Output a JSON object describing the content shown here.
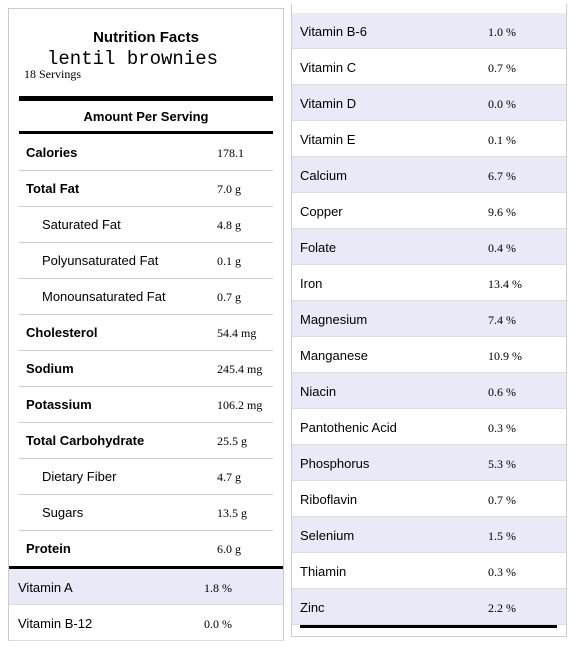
{
  "header": {
    "title": "Nutrition Facts",
    "recipe": "lentil brownies",
    "servings": "18 Servings",
    "amount_per_serving": "Amount Per Serving"
  },
  "nutrients": [
    {
      "name": "Calories",
      "value": "178.1",
      "sub": false
    },
    {
      "name": "Total Fat",
      "value": "7.0 g",
      "sub": false
    },
    {
      "name": "Saturated Fat",
      "value": "4.8 g",
      "sub": true
    },
    {
      "name": "Polyunsaturated Fat",
      "value": "0.1 g",
      "sub": true
    },
    {
      "name": "Monounsaturated Fat",
      "value": "0.7 g",
      "sub": true
    },
    {
      "name": "Cholesterol",
      "value": "54.4 mg",
      "sub": false
    },
    {
      "name": "Sodium",
      "value": "245.4 mg",
      "sub": false
    },
    {
      "name": "Potassium",
      "value": "106.2 mg",
      "sub": false
    },
    {
      "name": "Total Carbohydrate",
      "value": "25.5 g",
      "sub": false
    },
    {
      "name": "Dietary Fiber",
      "value": "4.7 g",
      "sub": true
    },
    {
      "name": "Sugars",
      "value": "13.5 g",
      "sub": true
    },
    {
      "name": "Protein",
      "value": "6.0 g",
      "sub": false
    }
  ],
  "vitamins_left": [
    {
      "name": "Vitamin A",
      "value": "1.8 %"
    },
    {
      "name": "Vitamin B-12",
      "value": "0.0 %"
    }
  ],
  "vitamins_right": [
    {
      "name": "Vitamin B-6",
      "value": "1.0 %"
    },
    {
      "name": "Vitamin C",
      "value": "0.7 %"
    },
    {
      "name": "Vitamin D",
      "value": "0.0 %"
    },
    {
      "name": "Vitamin E",
      "value": "0.1 %"
    },
    {
      "name": "Calcium",
      "value": "6.7 %"
    },
    {
      "name": "Copper",
      "value": "9.6 %"
    },
    {
      "name": "Folate",
      "value": "0.4 %"
    },
    {
      "name": "Iron",
      "value": "13.4 %"
    },
    {
      "name": "Magnesium",
      "value": "7.4 %"
    },
    {
      "name": "Manganese",
      "value": "10.9 %"
    },
    {
      "name": "Niacin",
      "value": "0.6 %"
    },
    {
      "name": "Pantothenic Acid",
      "value": "0.3 %"
    },
    {
      "name": "Phosphorus",
      "value": "5.3 %"
    },
    {
      "name": "Riboflavin",
      "value": "0.7 %"
    },
    {
      "name": "Selenium",
      "value": "1.5 %"
    },
    {
      "name": "Thiamin",
      "value": "0.3 %"
    },
    {
      "name": "Zinc",
      "value": "2.2 %"
    }
  ]
}
